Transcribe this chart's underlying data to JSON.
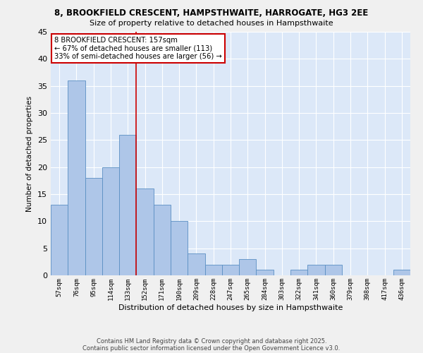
{
  "title1": "8, BROOKFIELD CRESCENT, HAMPSTHWAITE, HARROGATE, HG3 2EE",
  "title2": "Size of property relative to detached houses in Hampsthwaite",
  "xlabel": "Distribution of detached houses by size in Hampsthwaite",
  "ylabel": "Number of detached properties",
  "categories": [
    "57sqm",
    "76sqm",
    "95sqm",
    "114sqm",
    "133sqm",
    "152sqm",
    "171sqm",
    "190sqm",
    "209sqm",
    "228sqm",
    "247sqm",
    "265sqm",
    "284sqm",
    "303sqm",
    "322sqm",
    "341sqm",
    "360sqm",
    "379sqm",
    "398sqm",
    "417sqm",
    "436sqm"
  ],
  "values": [
    13,
    36,
    18,
    20,
    26,
    16,
    13,
    10,
    4,
    2,
    2,
    3,
    1,
    0,
    1,
    2,
    2,
    0,
    0,
    0,
    1
  ],
  "bar_color": "#aec6e8",
  "bar_edge_color": "#5a8fc3",
  "bg_color": "#dce8f8",
  "grid_color": "#ffffff",
  "vline_color": "#cc0000",
  "annotation_text": "8 BROOKFIELD CRESCENT: 157sqm\n← 67% of detached houses are smaller (113)\n33% of semi-detached houses are larger (56) →",
  "annotation_box_color": "#cc0000",
  "ylim": [
    0,
    45
  ],
  "yticks": [
    0,
    5,
    10,
    15,
    20,
    25,
    30,
    35,
    40,
    45
  ],
  "footer1": "Contains HM Land Registry data © Crown copyright and database right 2025.",
  "footer2": "Contains public sector information licensed under the Open Government Licence v3.0."
}
